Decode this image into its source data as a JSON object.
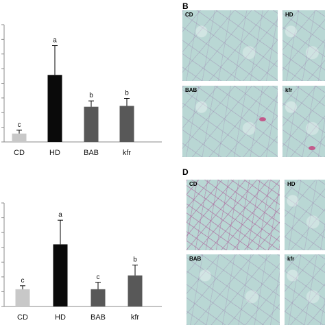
{
  "chart_data": [
    {
      "type": "bar",
      "categories": [
        "CD",
        "HD",
        "BAB",
        "kfr"
      ],
      "values": [
        1.0,
        8.0,
        4.2,
        4.3
      ],
      "errors": [
        0.4,
        3.5,
        0.7,
        0.9
      ],
      "significance": [
        "c",
        "a",
        "b",
        "b"
      ],
      "bar_colors": [
        "#c8c8c8",
        "#0a0a0a",
        "#585858",
        "#585858"
      ],
      "ylim": [
        0,
        14
      ]
    },
    {
      "type": "bar",
      "categories": [
        "CD",
        "HD",
        "BAB",
        "kfr"
      ],
      "values": [
        1.0,
        3.6,
        1.0,
        1.8
      ],
      "errors": [
        0.2,
        1.4,
        0.4,
        0.6
      ],
      "significance": [
        "c",
        "a",
        "c",
        "b"
      ],
      "bar_colors": [
        "#c8c8c8",
        "#0a0a0a",
        "#585858",
        "#585858"
      ],
      "ylim": [
        0,
        6
      ]
    }
  ],
  "micrographs": {
    "B": {
      "letter": "B",
      "images": [
        "CD",
        "HD",
        "BAB",
        "kfr"
      ]
    },
    "D": {
      "letter": "D",
      "images": [
        "CD",
        "HD",
        "BAB",
        "kfr"
      ]
    }
  }
}
